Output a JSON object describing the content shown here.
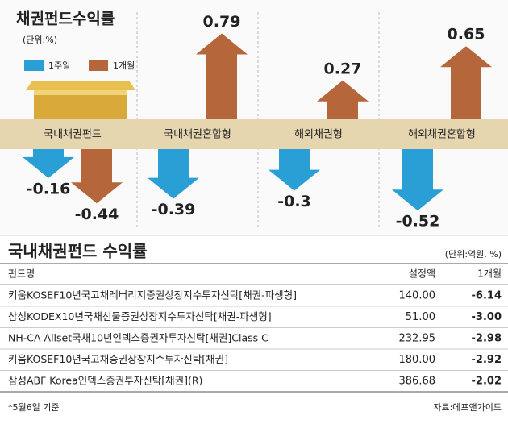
{
  "chart_data": {
    "type": "arrow-bar",
    "title": "채권펀드수익률",
    "subtitle": "(단위:%)",
    "categories": [
      "국내채권펀드",
      "국내채권혼합형",
      "해외채권형",
      "해외채권혼합형"
    ],
    "series": [
      {
        "name": "1주일",
        "color": "#2a9fd6",
        "values": [
          -0.16,
          -0.39,
          -0.3,
          -0.52
        ]
      },
      {
        "name": "1개월",
        "color": "#b5663a",
        "values": [
          -0.44,
          0.79,
          0.27,
          0.65
        ]
      }
    ]
  },
  "table": {
    "title": "국내채권펀드 수익률",
    "unit": "(단위:억원, %)",
    "header": [
      "펀드명",
      "설정액",
      "1개월"
    ],
    "rows": [
      [
        "키움KOSEF10년국고채레버리지증권상장지수투자신탁[채권-파생형]",
        "140.00",
        "-6.14"
      ],
      [
        "삼성KODEX10년국채선물증권상장지수투자신탁[채권-파생형]",
        "51.00",
        "-3.00"
      ],
      [
        "NH-CA Allset국채10년인덱스증권자투자신탁[채권]Class C",
        "232.95",
        "-2.98"
      ],
      [
        "키움KOSEF10년국고채증권상장지수투자신탁[채권]",
        "180.00",
        "-2.92"
      ],
      [
        "삼성ABF Korea인덱스증권투자신탁[채권](R)",
        "386.68",
        "-2.02"
      ]
    ],
    "note": "*5월6일 기준",
    "source": "자료:에프앤가이드"
  }
}
